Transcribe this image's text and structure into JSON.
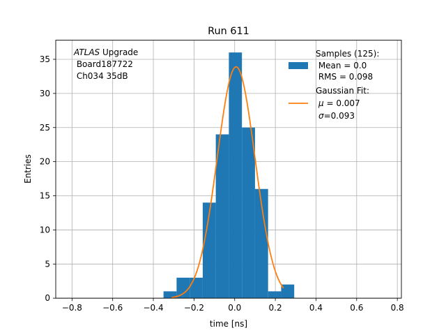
{
  "chart_data": {
    "type": "bar",
    "title": "Run 611",
    "xlabel": "time [ns]",
    "ylabel": "Entries",
    "xlim": [
      -0.88,
      0.82
    ],
    "ylim": [
      0,
      37.8
    ],
    "grid": true,
    "x_ticks": [
      -0.8,
      -0.6,
      -0.4,
      -0.2,
      0.0,
      0.2,
      0.4,
      0.6,
      0.8
    ],
    "x_tick_labels": [
      "−0.8",
      "−0.6",
      "−0.4",
      "−0.2",
      "0.0",
      "0.2",
      "0.4",
      "0.6",
      "0.8"
    ],
    "y_ticks": [
      0,
      5,
      10,
      15,
      20,
      25,
      30,
      35
    ],
    "y_tick_labels": [
      "0",
      "5",
      "10",
      "15",
      "20",
      "25",
      "30",
      "35"
    ],
    "histogram": {
      "name": "Samples (125):",
      "color": "#1f77b4",
      "bin_edges": [
        -0.35,
        -0.2857,
        -0.2214,
        -0.1571,
        -0.0929,
        -0.0286,
        0.0357,
        0.1,
        0.1643,
        0.2286,
        0.2929
      ],
      "counts": [
        1,
        3,
        3,
        14,
        24,
        36,
        25,
        16,
        1,
        2
      ]
    },
    "fit": {
      "name": "Gaussian Fit:",
      "color": "#ff7f0e",
      "amplitude": 33.9,
      "mu": 0.007,
      "sigma": 0.093,
      "x_range": [
        -0.31,
        0.24
      ]
    },
    "annotation": {
      "italic": "ATLAS",
      "line1_rest": " Upgrade",
      "line2": " Board187722",
      "line3": " Ch034 35dB"
    },
    "legend": {
      "position": "top-right",
      "samples_title": "Samples (125):",
      "samples_mean": " Mean = 0.0",
      "samples_rms": " RMS = 0.098",
      "fit_title": "Gaussian Fit:",
      "fit_mu_sym": "μ",
      "fit_mu_val": " = 0.007",
      "fit_sigma_sym": "σ",
      "fit_sigma_val": "=0.093"
    }
  }
}
